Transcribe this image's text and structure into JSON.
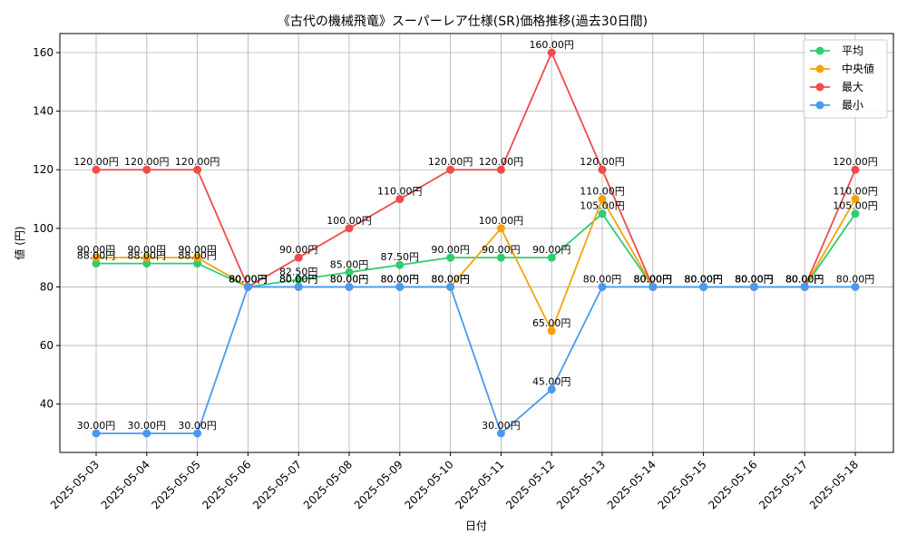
{
  "chart_data": {
    "type": "line",
    "title": "《古代の機械飛竜》スーパーレア仕様(SR)価格推移(過去30日間)",
    "xlabel": "日付",
    "ylabel": "値 (円)",
    "x": [
      "2025-05-03",
      "2025-05-04",
      "2025-05-05",
      "2025-05-06",
      "2025-05-07",
      "2025-05-08",
      "2025-05-09",
      "2025-05-10",
      "2025-05-11",
      "2025-05-12",
      "2025-05-13",
      "2025-05-14",
      "2025-05-15",
      "2025-05-16",
      "2025-05-17",
      "2025-05-18"
    ],
    "ylim": [
      23.5,
      166.5
    ],
    "yticks": [
      40,
      60,
      80,
      100,
      120,
      140,
      160
    ],
    "grid": true,
    "legend_position": "top-right",
    "value_suffix": "円",
    "series": [
      {
        "name": "平均",
        "color": "#2ecc71",
        "values": [
          88,
          88,
          88,
          80,
          82.5,
          85,
          87.5,
          90,
          90,
          90,
          105,
          80,
          80,
          80,
          80,
          105
        ]
      },
      {
        "name": "中央値",
        "color": "#f5a20a",
        "values": [
          90,
          90,
          90,
          80,
          80,
          80,
          80,
          80,
          100,
          65,
          110,
          80,
          80,
          80,
          80,
          110
        ]
      },
      {
        "name": "最大",
        "color": "#f04a4a",
        "values": [
          120,
          120,
          120,
          80,
          90,
          100,
          110,
          120,
          120,
          160,
          120,
          80,
          80,
          80,
          80,
          120
        ]
      },
      {
        "name": "最小",
        "color": "#4a99f0",
        "values": [
          30,
          30,
          30,
          80,
          80,
          80,
          80,
          80,
          30,
          45,
          80,
          80,
          80,
          80,
          80,
          80
        ]
      }
    ]
  }
}
